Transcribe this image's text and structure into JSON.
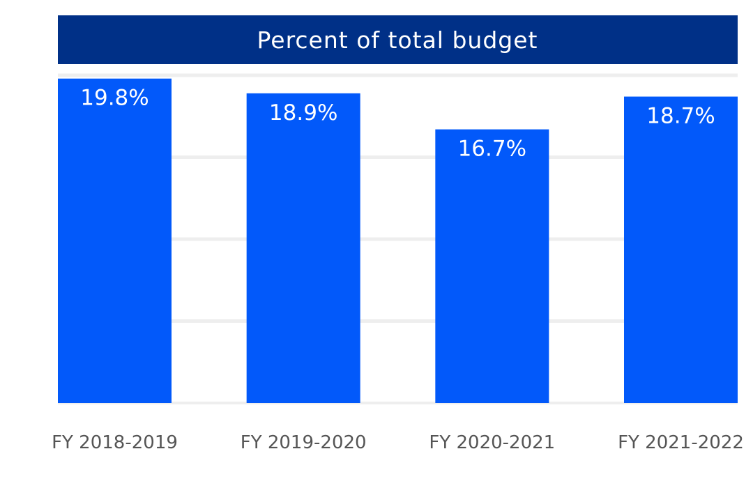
{
  "chart_data": {
    "type": "bar",
    "title": "Percent of total budget",
    "categories": [
      "FY 2018-2019",
      "FY 2019-2020",
      "FY 2020-2021",
      "FY 2021-2022"
    ],
    "values": [
      19.8,
      18.9,
      16.7,
      18.7
    ],
    "value_labels": [
      "19.8%",
      "18.9%",
      "16.7%",
      "18.7%"
    ],
    "ylim": [
      0,
      20
    ],
    "grid": true,
    "xlabel": "",
    "ylabel": "",
    "colors": {
      "bar": "#0259FA",
      "header": "#003087",
      "grid": "#eeeeee",
      "category_text": "#555555"
    }
  }
}
